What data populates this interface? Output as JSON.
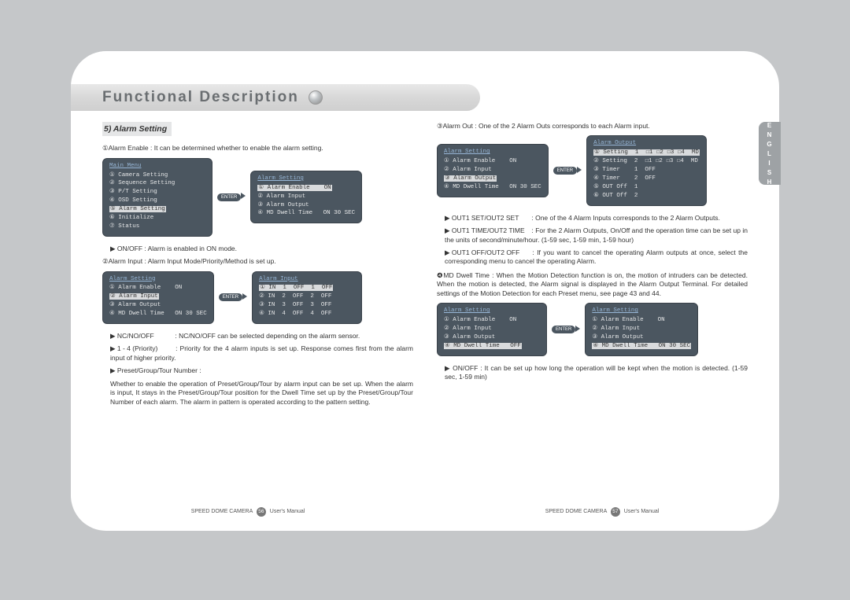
{
  "colors": {
    "page_bg": "#c5c7c9",
    "paper_bg": "#ffffff",
    "header_text": "#6a6e71",
    "lang_tab_bg": "#9ea2a5",
    "menu_bg": "#4b5660",
    "menu_title": "#97b6d6",
    "highlight_bg": "#d9dbdd"
  },
  "header_title": "Functional Description",
  "lang_tab": "ENGLISH",
  "section_title": "5) Alarm Setting",
  "left": {
    "p1": "①Alarm Enable : It can be determined whether to enable the alarm setting.",
    "diag1": {
      "left": {
        "title": "Main Menu",
        "rows": [
          "① Camera Setting",
          "② Sequence Setting",
          "③ P/T Setting",
          "④ OSD Setting",
          "⑤ Alarm Setting",
          "⑥ Initialize",
          "⑦ Status"
        ],
        "highlight_row": 4
      },
      "btn": "ENTER",
      "right": {
        "title": "Alarm Setting",
        "rows": [
          "① Alarm Enable    ON",
          "② Alarm Input",
          "③ Alarm Output",
          "④ MD Dwell Time   ON 30 SEC"
        ],
        "highlight_row": 0
      }
    },
    "p1b": "▶ ON/OFF : Alarm is enabled in ON mode.",
    "p2": "②Alarm Input : Alarm Input Mode/Priority/Method is set up.",
    "diag2": {
      "left": {
        "title": "Alarm Setting",
        "rows": [
          "① Alarm Enable    ON",
          "② Alarm Input",
          "③ Alarm Output",
          "④ MD Dwell Time   ON 30 SEC"
        ],
        "highlight_row": 1
      },
      "btn": "ENTER",
      "right": {
        "title": "Alarm Input",
        "rows": [
          "① IN  1  OFF  1  OFF",
          "② IN  2  OFF  2  OFF",
          "③ IN  3  OFF  3  OFF",
          "④ IN  4  OFF  4  OFF"
        ],
        "highlight_row": 0
      }
    },
    "s1_lbl": "▶ NC/NO/OFF",
    "s1_txt": ": NC/NO/OFF can be selected depending on the alarm sensor.",
    "s2_lbl": "▶ 1 - 4 (Priority)",
    "s2_txt": ": Priority for the 4 alarm inputs is set up. Response comes first from the alarm input of higher priority.",
    "s3_lbl": "▶ Preset/Group/Tour Number :",
    "s3_txt": "Whether to enable the operation of Preset/Group/Tour by alarm input can be set up. When the alarm is input, It stays in the Preset/Group/Tour position for the Dwell Time set up by the Preset/Group/Tour Number of each alarm. The alarm in pattern is operated according to the pattern setting."
  },
  "right": {
    "p3": "③Alarm Out : One of the 2 Alarm Outs corresponds to each Alarm input.",
    "diag3": {
      "left": {
        "title": "Alarm Setting",
        "rows": [
          "① Alarm Enable    ON",
          "② Alarm Input",
          "③ Alarm Output",
          "④ MD Dwell Time   ON 30 SEC"
        ],
        "highlight_row": 2
      },
      "btn": "ENTER",
      "right": {
        "title": "Alarm Output",
        "rows": [
          "① Setting  1  ☐1 ☐2 ☐3 ☐4  MD",
          "② Setting  2  ☐1 ☐2 ☐3 ☐4  MD",
          "③ Timer    1  OFF",
          "④ Timer    2  OFF",
          "⑤ OUT Off  1",
          "⑥ OUT Off  2"
        ],
        "highlight_row": 0
      }
    },
    "r1_lbl": "▶ OUT1 SET/OUT2 SET",
    "r1_txt": ": One of the 4 Alarm Inputs corresponds to the 2 Alarm Outputs.",
    "r2_lbl": "▶ OUT1 TIME/OUT2 TIME",
    "r2_txt": ": For the 2 Alarm Outputs, On/Off and the operation time can be set up in the units of second/minute/hour. (1-59 sec, 1-59 min, 1-59 hour)",
    "r3_lbl": "▶ OUT1 OFF/OUT2 OFF",
    "r3_txt": ": If you want to cancel the operating Alarm outputs at once, select the corresponding menu to cancel the operating Alarm.",
    "p4": "❹MD Dwell Time : When the Motion Detection function is on, the motion of intruders can be detected. When the motion is detected, the Alarm signal is displayed in the Alarm Output Terminal. For detailed settings of the Motion Detection for each Preset menu, see page 43 and 44.",
    "diag4": {
      "left": {
        "title": "Alarm Setting",
        "rows": [
          "① Alarm Enable    ON",
          "② Alarm Input",
          "③ Alarm Output",
          "④ MD Dwell Time   OFF"
        ],
        "highlight_row": 3
      },
      "btn": "ENTER",
      "right": {
        "title": "Alarm Setting",
        "rows": [
          "① Alarm Enable    ON",
          "② Alarm Input",
          "③ Alarm Output",
          "④ MD Dwell Time   ON 30 SEC"
        ],
        "highlight_row": 3
      }
    },
    "r4": "▶ ON/OFF : It can be set up how long the operation will be kept when the motion is detected. (1-59 sec, 1-59 min)"
  },
  "footer": {
    "text_l": "SPEED DOME CAMERA",
    "text_r": "User's Manual",
    "page_left": "56",
    "page_right": "57"
  }
}
